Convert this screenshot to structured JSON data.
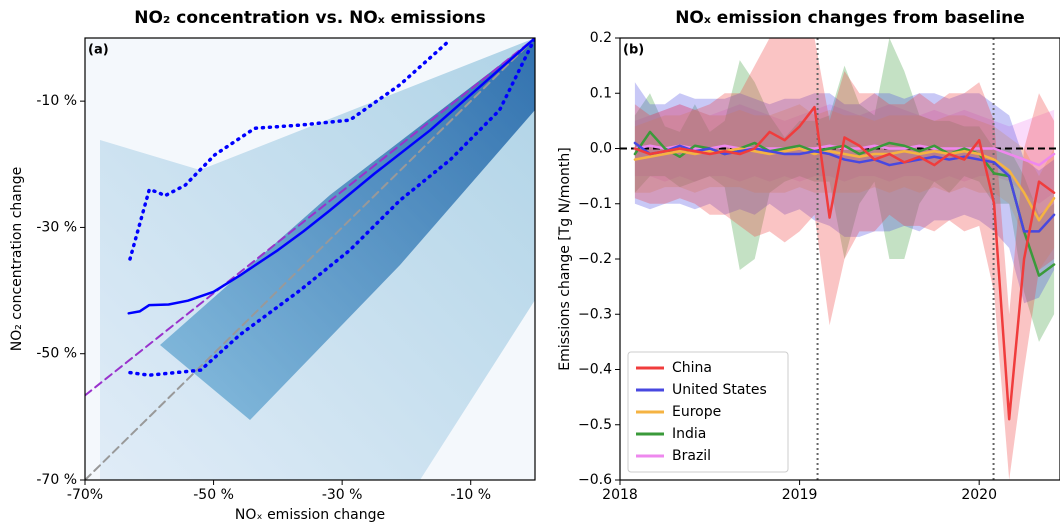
{
  "chart_data": [
    {
      "type": "line",
      "title": "NO₂ concentration vs. NOₓ emissions",
      "panel_label": "(a)",
      "xlabel": "NOₓ emission change",
      "ylabel": "NO₂ concentration change",
      "xlim": [
        -70,
        0
      ],
      "ylim": [
        -70,
        0
      ],
      "xticks": [
        {
          "value": -70,
          "label": "-70%"
        },
        {
          "value": -50,
          "label": "-50 %"
        },
        {
          "value": -30,
          "label": "-30 %"
        },
        {
          "value": -10,
          "label": "-10 %"
        }
      ],
      "yticks": [
        {
          "value": -10,
          "label": "-10 %"
        },
        {
          "value": -30,
          "label": "-30 %"
        },
        {
          "value": -50,
          "label": "-50 %"
        },
        {
          "value": -70,
          "label": "-70 %"
        }
      ],
      "series": [
        {
          "color": "#999999",
          "style": "dashed",
          "x": [
            -70,
            0
          ],
          "values": [
            -70,
            0
          ]
        },
        {
          "color": "#9932cc",
          "style": "dashed",
          "x": [
            -70,
            0
          ],
          "values": [
            -56.6,
            0
          ]
        },
        {
          "color": "#0000ff",
          "style": "dotted",
          "x": [
            -63,
            -60,
            -58.5,
            -57.6,
            -54.4,
            -49.8,
            -43.6,
            -36.6,
            -28.8,
            -21,
            -13.2
          ],
          "values": [
            -35,
            -24,
            -24.5,
            -25,
            -23.3,
            -18.5,
            -14.3,
            -13.8,
            -13,
            -7.4,
            -0.3
          ]
        },
        {
          "color": "#0000ff",
          "style": "dotted",
          "x": [
            -63,
            -60,
            -52,
            -45.9,
            -36.6,
            -28.8,
            -21,
            -13.2,
            -5.5,
            0
          ],
          "values": [
            -53,
            -53.4,
            -52.6,
            -47,
            -40,
            -33.6,
            -25.7,
            -19.3,
            -11.4,
            0
          ]
        },
        {
          "color": "#0000ff",
          "style": "solid",
          "x": [
            -63.2,
            -61.5,
            -60,
            -57,
            -54,
            -50,
            -45.9,
            -40,
            -36,
            -31.9,
            -25,
            -16.3,
            -8,
            0
          ],
          "values": [
            -43.6,
            -43.3,
            -42.3,
            -42.2,
            -41.6,
            -40.2,
            -37.6,
            -33.6,
            -30.6,
            -27.3,
            -21.5,
            -14.6,
            -7.2,
            0
          ]
        }
      ]
    },
    {
      "type": "line",
      "title": "NOₓ emission changes from baseline",
      "panel_label": "(b)",
      "ylabel": "Emissions change [Tg N/month]",
      "xlim": [
        2018,
        2020.45
      ],
      "ylim": [
        -0.6,
        0.2
      ],
      "xticks": [
        2018,
        2019,
        2020
      ],
      "yticks": [
        0.2,
        0.1,
        {
          "value": 0,
          "label": "0.0"
        },
        {
          "value": -0.1,
          "label": "−0.1"
        },
        {
          "value": -0.2,
          "label": "−0.2"
        },
        {
          "value": -0.3,
          "label": "−0.3"
        },
        {
          "value": -0.4,
          "label": "−0.4"
        },
        {
          "value": -0.5,
          "label": "−0.5"
        },
        {
          "value": -0.6,
          "label": "−0.6"
        }
      ],
      "vlines": [
        2019.1,
        2020.08
      ],
      "hline": 0,
      "legend": "lower left",
      "series": [
        {
          "name": "Brazil",
          "color": "#ee88ee",
          "x": [
            2018.083,
            2018.167,
            2018.25,
            2018.333,
            2018.417,
            2018.5,
            2018.583,
            2018.667,
            2018.75,
            2018.833,
            2018.917,
            2019,
            2019.083,
            2019.167,
            2019.25,
            2019.333,
            2019.417,
            2019.5,
            2019.583,
            2019.667,
            2019.75,
            2019.833,
            2019.917,
            2020,
            2020.083,
            2020.167,
            2020.25,
            2020.333,
            2020.417
          ],
          "values": [
            0,
            0.005,
            0,
            0.005,
            0,
            0,
            0.005,
            0,
            0,
            0,
            0,
            0,
            0,
            0.005,
            0,
            0,
            0.005,
            0,
            0,
            0.005,
            0,
            0,
            0,
            0,
            0,
            -0.01,
            -0.02,
            -0.03,
            -0.01
          ],
          "upper": [
            0.05,
            0.06,
            0.07,
            0.08,
            0.07,
            0.06,
            0.07,
            0.08,
            0.07,
            0.06,
            0.05,
            0.06,
            0.07,
            0.08,
            0.07,
            0.06,
            0.07,
            0.08,
            0.07,
            0.06,
            0.07,
            0.06,
            0.07,
            0.06,
            0.05,
            0.04,
            0.05,
            0.06,
            0.07
          ],
          "lower": [
            -0.05,
            -0.05,
            -0.06,
            -0.05,
            -0.06,
            -0.05,
            -0.05,
            -0.06,
            -0.05,
            -0.06,
            -0.05,
            -0.06,
            -0.05,
            -0.05,
            -0.06,
            -0.05,
            -0.05,
            -0.06,
            -0.05,
            -0.05,
            -0.06,
            -0.05,
            -0.06,
            -0.05,
            -0.05,
            -0.06,
            -0.08,
            -0.1,
            -0.08
          ]
        },
        {
          "name": "India",
          "color": "#3a9a3a",
          "x": [
            2018.083,
            2018.167,
            2018.25,
            2018.333,
            2018.417,
            2018.5,
            2018.583,
            2018.667,
            2018.75,
            2018.833,
            2018.917,
            2019,
            2019.083,
            2019.167,
            2019.25,
            2019.333,
            2019.417,
            2019.5,
            2019.583,
            2019.667,
            2019.75,
            2019.833,
            2019.917,
            2020,
            2020.083,
            2020.167,
            2020.25,
            2020.333,
            2020.417
          ],
          "values": [
            -0.01,
            0.03,
            0,
            -0.015,
            0.005,
            0,
            -0.01,
            0,
            0.01,
            -0.005,
            0,
            0.005,
            -0.005,
            0,
            0.005,
            -0.01,
            0,
            0.01,
            0.005,
            -0.005,
            0.005,
            -0.01,
            0,
            -0.01,
            -0.045,
            -0.05,
            -0.15,
            -0.23,
            -0.21
          ],
          "upper": [
            0.06,
            0.1,
            0.04,
            0.03,
            0.08,
            0.03,
            0.05,
            0.16,
            0.12,
            0.06,
            0.02,
            0.05,
            0.05,
            0.06,
            0.15,
            0.08,
            0.06,
            0.2,
            0.14,
            0.06,
            0.05,
            0.05,
            0.04,
            0.04,
            0,
            0,
            -0.05,
            -0.12,
            -0.1
          ],
          "lower": [
            -0.08,
            -0.05,
            -0.05,
            -0.07,
            -0.06,
            -0.05,
            -0.07,
            -0.22,
            -0.2,
            -0.08,
            -0.06,
            -0.05,
            -0.06,
            -0.06,
            -0.2,
            -0.1,
            -0.06,
            -0.2,
            -0.2,
            -0.1,
            -0.06,
            -0.08,
            -0.05,
            -0.06,
            -0.1,
            -0.1,
            -0.26,
            -0.35,
            -0.3
          ]
        },
        {
          "name": "Europe",
          "color": "#f5b342",
          "x": [
            2018.083,
            2018.167,
            2018.25,
            2018.333,
            2018.417,
            2018.5,
            2018.583,
            2018.667,
            2018.75,
            2018.833,
            2018.917,
            2019,
            2019.083,
            2019.167,
            2019.25,
            2019.333,
            2019.417,
            2019.5,
            2019.583,
            2019.667,
            2019.75,
            2019.833,
            2019.917,
            2020,
            2020.083,
            2020.167,
            2020.25,
            2020.333,
            2020.417
          ],
          "values": [
            -0.02,
            -0.015,
            -0.01,
            -0.005,
            -0.01,
            -0.005,
            -0.005,
            0,
            -0.005,
            -0.01,
            -0.005,
            0,
            -0.01,
            -0.005,
            -0.01,
            -0.015,
            -0.01,
            -0.01,
            -0.005,
            -0.01,
            -0.005,
            -0.01,
            -0.005,
            -0.01,
            -0.02,
            -0.04,
            -0.08,
            -0.13,
            -0.09
          ],
          "upper": [
            0.04,
            0.05,
            0.06,
            0.06,
            0.07,
            0.06,
            0.06,
            0.07,
            0.06,
            0.06,
            0.07,
            0.08,
            0.06,
            0.07,
            0.06,
            0.06,
            0.05,
            0.06,
            0.06,
            0.06,
            0.05,
            0.06,
            0.06,
            0.05,
            0.04,
            0.02,
            0,
            -0.05,
            0
          ],
          "lower": [
            -0.08,
            -0.08,
            -0.07,
            -0.07,
            -0.08,
            -0.07,
            -0.07,
            -0.07,
            -0.08,
            -0.08,
            -0.08,
            -0.07,
            -0.08,
            -0.08,
            -0.08,
            -0.08,
            -0.07,
            -0.08,
            -0.07,
            -0.08,
            -0.07,
            -0.08,
            -0.07,
            -0.08,
            -0.08,
            -0.1,
            -0.16,
            -0.22,
            -0.18
          ]
        },
        {
          "name": "United States",
          "color": "#4848e0",
          "x": [
            2018.083,
            2018.167,
            2018.25,
            2018.333,
            2018.417,
            2018.5,
            2018.583,
            2018.667,
            2018.75,
            2018.833,
            2018.917,
            2019,
            2019.083,
            2019.167,
            2019.25,
            2019.333,
            2019.417,
            2019.5,
            2019.583,
            2019.667,
            2019.75,
            2019.833,
            2019.917,
            2020,
            2020.083,
            2020.167,
            2020.25,
            2020.333,
            2020.417
          ],
          "values": [
            0.01,
            -0.01,
            -0.005,
            0.005,
            -0.005,
            0,
            -0.01,
            -0.005,
            0,
            -0.005,
            -0.01,
            -0.01,
            -0.005,
            -0.01,
            -0.02,
            -0.025,
            -0.02,
            -0.03,
            -0.025,
            -0.02,
            -0.015,
            -0.02,
            -0.015,
            -0.02,
            -0.025,
            -0.05,
            -0.15,
            -0.15,
            -0.12
          ],
          "upper": [
            0.12,
            0.08,
            0.08,
            0.1,
            0.09,
            0.09,
            0.09,
            0.1,
            0.09,
            0.08,
            0.09,
            0.09,
            0.1,
            0.1,
            0.08,
            0.08,
            0.1,
            0.1,
            0.09,
            0.1,
            0.1,
            0.09,
            0.1,
            0.1,
            0.08,
            0.06,
            -0.02,
            -0.04,
            -0.02
          ],
          "lower": [
            -0.1,
            -0.11,
            -0.1,
            -0.1,
            -0.11,
            -0.1,
            -0.12,
            -0.11,
            -0.12,
            -0.1,
            -0.12,
            -0.11,
            -0.13,
            -0.14,
            -0.16,
            -0.16,
            -0.15,
            -0.15,
            -0.14,
            -0.15,
            -0.13,
            -0.13,
            -0.12,
            -0.13,
            -0.15,
            -0.18,
            -0.28,
            -0.27,
            -0.22
          ]
        },
        {
          "name": "China",
          "color": "#f03c3c",
          "x": [
            2018.083,
            2018.167,
            2018.25,
            2018.333,
            2018.417,
            2018.5,
            2018.583,
            2018.667,
            2018.75,
            2018.833,
            2018.917,
            2019,
            2019.083,
            2019.167,
            2019.25,
            2019.333,
            2019.417,
            2019.5,
            2019.583,
            2019.667,
            2019.75,
            2019.833,
            2019.917,
            2020,
            2020.083,
            2020.167,
            2020.25,
            2020.333,
            2020.417
          ],
          "values": [
            0,
            -0.01,
            -0.005,
            0,
            -0.005,
            -0.01,
            -0.005,
            -0.01,
            0,
            0.03,
            0.015,
            0.04,
            0.075,
            -0.125,
            0.02,
            0.005,
            -0.02,
            -0.01,
            -0.025,
            -0.015,
            -0.03,
            -0.01,
            -0.02,
            0.015,
            -0.1,
            -0.49,
            -0.2,
            -0.06,
            -0.08
          ],
          "upper": [
            0.08,
            0.06,
            0.07,
            0.08,
            0.07,
            0.08,
            0.1,
            0.1,
            0.15,
            0.2,
            0.2,
            0.2,
            0.2,
            0.05,
            0.14,
            0.1,
            0.1,
            0.08,
            0.08,
            0.1,
            0.08,
            0.1,
            0.1,
            0.12,
            0.05,
            -0.3,
            0,
            0.1,
            0.05
          ],
          "lower": [
            -0.09,
            -0.1,
            -0.1,
            -0.09,
            -0.1,
            -0.12,
            -0.12,
            -0.14,
            -0.16,
            -0.15,
            -0.17,
            -0.15,
            -0.12,
            -0.32,
            -0.2,
            -0.15,
            -0.15,
            -0.12,
            -0.14,
            -0.14,
            -0.15,
            -0.13,
            -0.15,
            -0.14,
            -0.26,
            -0.6,
            -0.4,
            -0.22,
            -0.2
          ]
        }
      ]
    }
  ]
}
